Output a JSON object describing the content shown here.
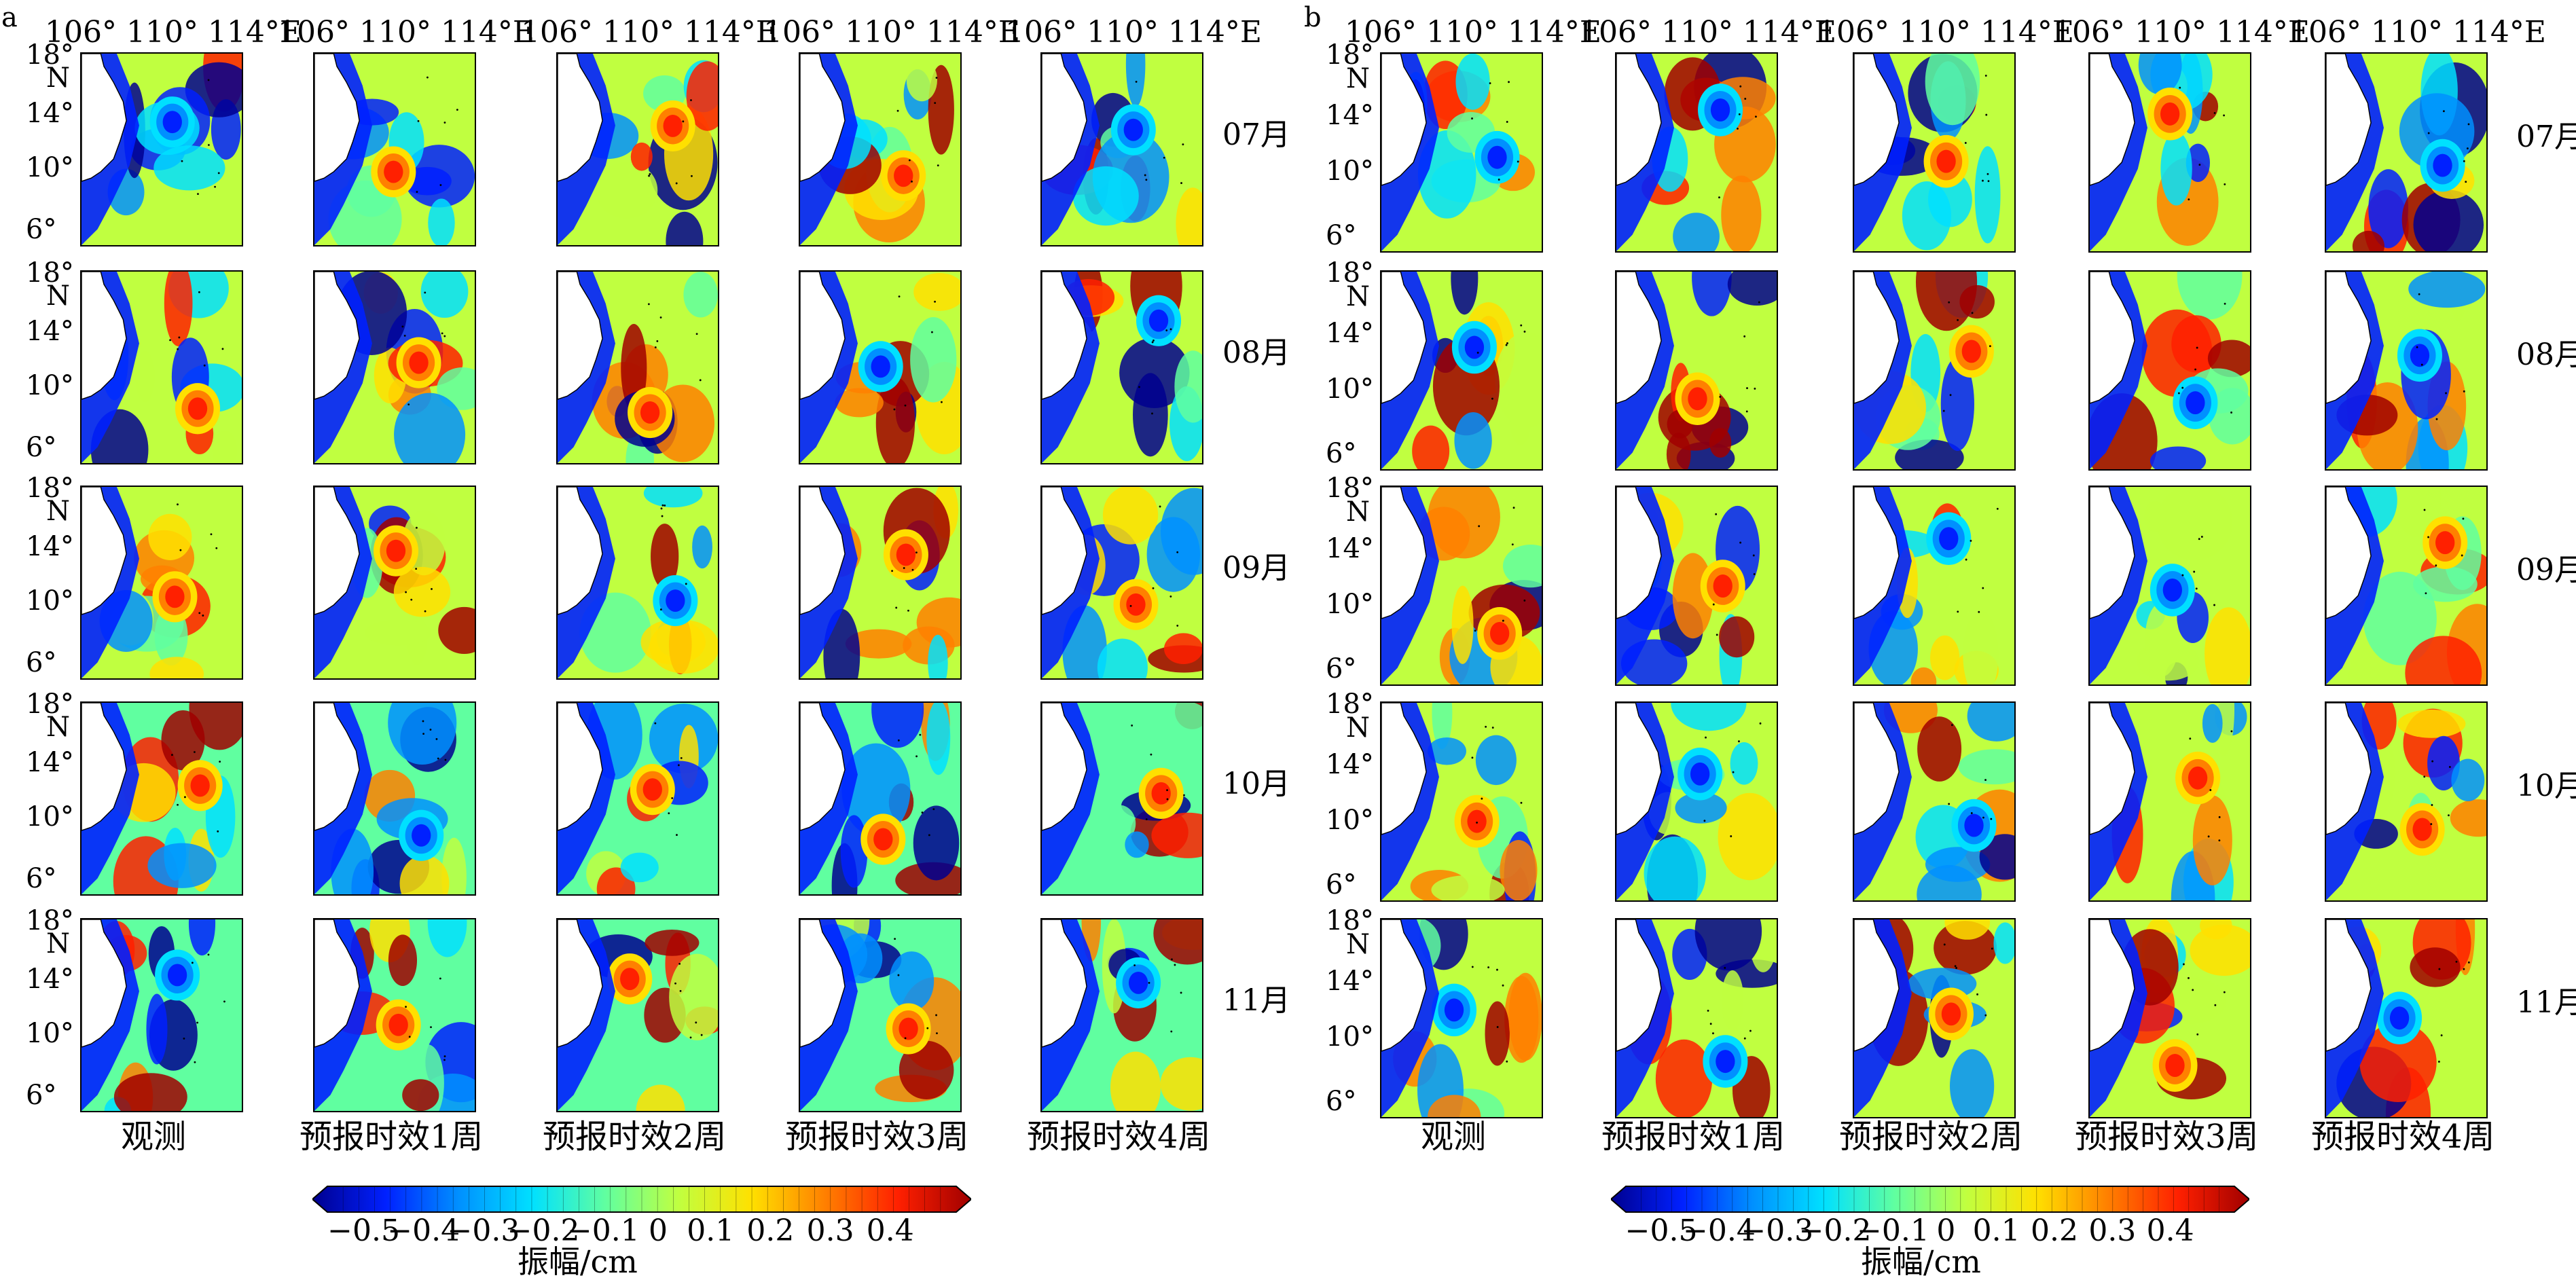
{
  "figure": {
    "panels": [
      {
        "id": "a",
        "letter": "a",
        "lon_labels": "106° 110° 114°E",
        "lat_labels": [
          "18°",
          "N",
          "14°",
          "10°",
          "6°"
        ],
        "months": [
          "07月",
          "08月",
          "09月",
          "10月",
          "11月"
        ],
        "columns": [
          "观测",
          "预报时效1周",
          "预报时效2周",
          "预报时效3周",
          "预报时效4周"
        ],
        "lat_label_columns": "first-only",
        "colorbar": {
          "ticks": [
            "−0.5",
            "−0.4",
            "−0.3",
            "−0.2",
            "−0.1",
            "0",
            "0.1",
            "0.2",
            "0.3",
            "0.4"
          ],
          "title": "振幅/cm",
          "range": [
            -0.55,
            0.5
          ]
        }
      },
      {
        "id": "b",
        "letter": "b",
        "lon_labels": "106° 110° 114°E",
        "lat_labels": [
          "18°",
          "N",
          "14°",
          "10°",
          "6°"
        ],
        "months": [
          "07月",
          "08月",
          "09月",
          "10月",
          "11月"
        ],
        "columns": [
          "观测",
          "预报时效1周",
          "预报时效2周",
          "预报时效3周",
          "预报时效4周"
        ],
        "lat_label_columns": "first-only-all-rows-with-6-on-bottom",
        "colorbar": {
          "ticks": [
            "−0.5",
            "−0.4",
            "−0.3",
            "−0.2",
            "−0.1",
            "0",
            "0.1",
            "0.2",
            "0.3",
            "0.4"
          ],
          "title": "振幅/cm",
          "range": [
            -0.55,
            0.5
          ]
        }
      }
    ],
    "colormap": [
      "#00008f",
      "#0020ff",
      "#0090ff",
      "#00e0ff",
      "#60ffa0",
      "#c0ff40",
      "#ffe000",
      "#ff8000",
      "#ff2000",
      "#a00000"
    ]
  }
}
